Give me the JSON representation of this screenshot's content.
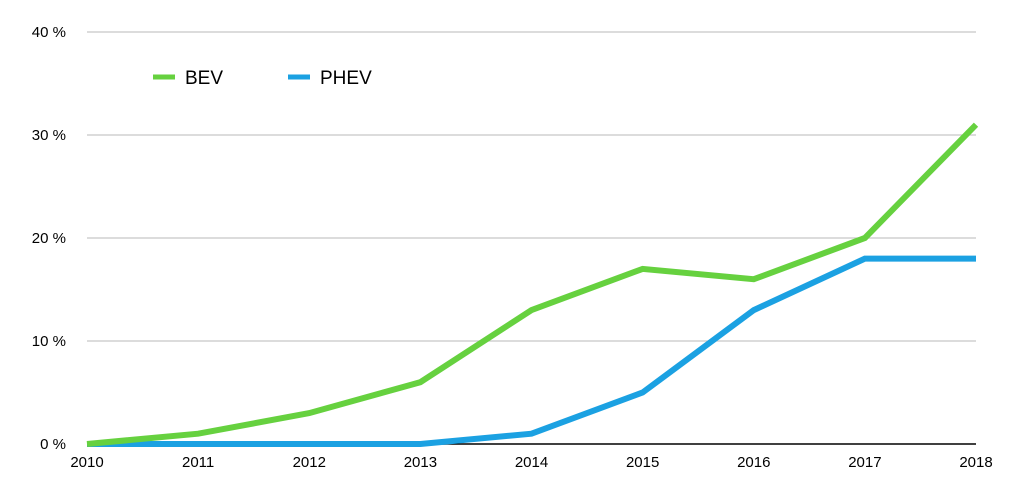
{
  "chart_data": {
    "type": "line",
    "x": [
      "2010",
      "2011",
      "2012",
      "2013",
      "2014",
      "2015",
      "2016",
      "2017",
      "2018"
    ],
    "series": [
      {
        "name": "BEV",
        "color": "#66d13f",
        "values": [
          0,
          1,
          3,
          6,
          13,
          17,
          16,
          20,
          31
        ]
      },
      {
        "name": "PHEV",
        "color": "#1ba1e2",
        "values": [
          0,
          0,
          0,
          0,
          1,
          5,
          13,
          18,
          18
        ]
      }
    ],
    "yticks": [
      0,
      10,
      20,
      30,
      40
    ],
    "ytick_labels": [
      "0 %",
      "10 %",
      "20 %",
      "30 %",
      "40 %"
    ],
    "ylim": [
      0,
      40
    ],
    "grid": true,
    "legend_position": "top-left"
  }
}
